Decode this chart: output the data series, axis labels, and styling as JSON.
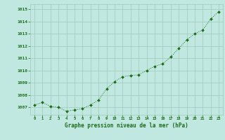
{
  "x": [
    0,
    1,
    2,
    3,
    4,
    5,
    6,
    7,
    8,
    9,
    10,
    11,
    12,
    13,
    14,
    15,
    16,
    17,
    18,
    19,
    20,
    21,
    22,
    23
  ],
  "y": [
    1007.2,
    1007.4,
    1007.1,
    1007.0,
    1006.7,
    1006.8,
    1006.9,
    1007.2,
    1007.6,
    1008.5,
    1009.1,
    1009.5,
    1009.6,
    1009.65,
    1010.0,
    1010.35,
    1010.55,
    1011.1,
    1011.8,
    1012.5,
    1013.0,
    1013.3,
    1014.2,
    1014.8
  ],
  "line_color": "#1a6b1a",
  "marker_color": "#1a6b1a",
  "background_color": "#c0e8e0",
  "grid_color": "#a0c8bc",
  "xlabel": "Graphe pression niveau de la mer (hPa)",
  "xlabel_color": "#1a6b1a",
  "tick_color": "#1a6b1a",
  "ylim": [
    1006.4,
    1015.4
  ],
  "yticks": [
    1007,
    1008,
    1009,
    1010,
    1011,
    1012,
    1013,
    1014,
    1015
  ],
  "fig_bg": "#c0e8e0"
}
